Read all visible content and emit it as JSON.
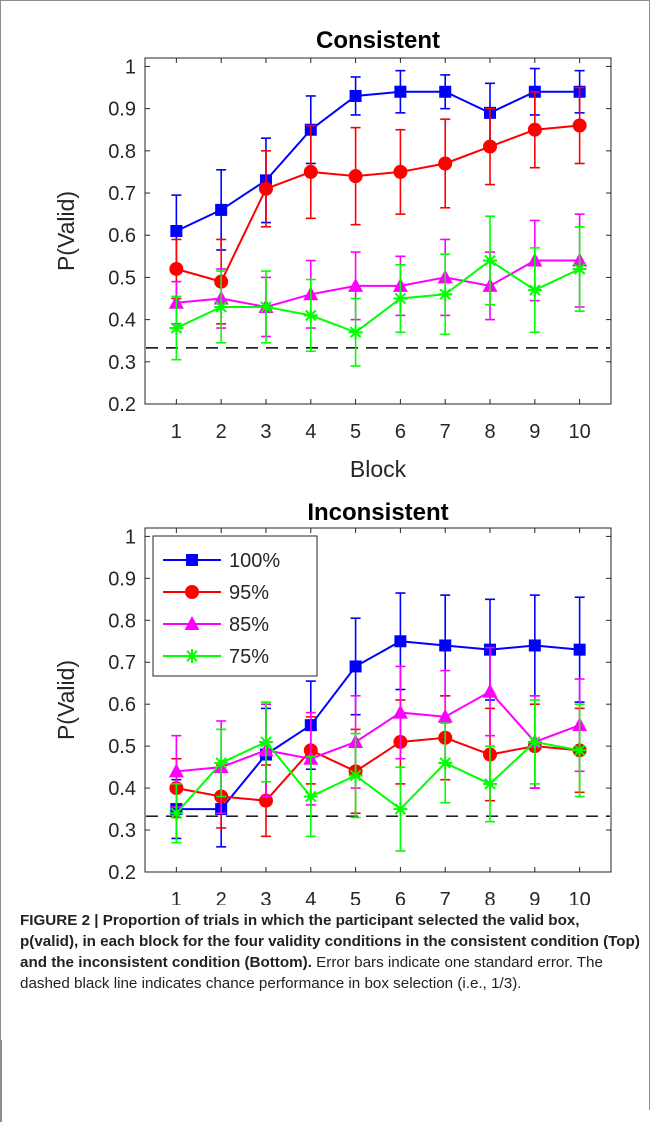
{
  "chart_data": [
    {
      "type": "line",
      "title": "Consistent",
      "xlabel": "Block",
      "ylabel": "P(Valid)",
      "xlim": [
        0.3,
        10.7
      ],
      "ylim": [
        0.2,
        1.02
      ],
      "x": [
        1,
        2,
        3,
        4,
        5,
        6,
        7,
        8,
        9,
        10
      ],
      "yticks": [
        "0.2",
        "0.3",
        "0.4",
        "0.5",
        "0.6",
        "0.7",
        "0.8",
        "0.9",
        "1"
      ],
      "chance_line": 0.333,
      "series": [
        {
          "name": "100%",
          "color": "#0000ff",
          "marker": "square",
          "values": [
            0.61,
            0.66,
            0.73,
            0.85,
            0.93,
            0.94,
            0.94,
            0.89,
            0.94,
            0.94
          ],
          "errors": [
            0.085,
            0.095,
            0.1,
            0.08,
            0.045,
            0.05,
            0.04,
            0.07,
            0.055,
            0.05
          ]
        },
        {
          "name": "95%",
          "color": "#ff0000",
          "marker": "circle",
          "values": [
            0.52,
            0.49,
            0.71,
            0.75,
            0.74,
            0.75,
            0.77,
            0.81,
            0.85,
            0.86
          ],
          "errors": [
            0.07,
            0.1,
            0.09,
            0.11,
            0.115,
            0.1,
            0.105,
            0.09,
            0.09,
            0.09
          ]
        },
        {
          "name": "85%",
          "color": "#ff00ff",
          "marker": "triangle",
          "values": [
            0.44,
            0.45,
            0.43,
            0.46,
            0.48,
            0.48,
            0.5,
            0.48,
            0.54,
            0.54
          ],
          "errors": [
            0.05,
            0.07,
            0.07,
            0.08,
            0.08,
            0.07,
            0.09,
            0.08,
            0.095,
            0.11
          ]
        },
        {
          "name": "75%",
          "color": "#00ff00",
          "marker": "star",
          "values": [
            0.38,
            0.43,
            0.43,
            0.41,
            0.37,
            0.45,
            0.46,
            0.54,
            0.47,
            0.52
          ],
          "errors": [
            0.075,
            0.085,
            0.085,
            0.085,
            0.08,
            0.08,
            0.095,
            0.105,
            0.1,
            0.1
          ]
        }
      ]
    },
    {
      "type": "line",
      "title": "Inconsistent",
      "xlabel": "Block",
      "ylabel": "P(Valid)",
      "xlim": [
        0.3,
        10.7
      ],
      "ylim": [
        0.2,
        1.02
      ],
      "x": [
        1,
        2,
        3,
        4,
        5,
        6,
        7,
        8,
        9,
        10
      ],
      "yticks": [
        "0.2",
        "0.3",
        "0.4",
        "0.5",
        "0.6",
        "0.7",
        "0.8",
        "0.9",
        "1"
      ],
      "chance_line": 0.333,
      "legend_position": "top-left",
      "series": [
        {
          "name": "100%",
          "color": "#0000ff",
          "marker": "square",
          "values": [
            0.35,
            0.35,
            0.48,
            0.55,
            0.69,
            0.75,
            0.74,
            0.73,
            0.74,
            0.73
          ],
          "errors": [
            0.07,
            0.09,
            0.11,
            0.105,
            0.115,
            0.115,
            0.12,
            0.12,
            0.12,
            0.125
          ]
        },
        {
          "name": "95%",
          "color": "#ff0000",
          "marker": "circle",
          "values": [
            0.4,
            0.38,
            0.37,
            0.49,
            0.44,
            0.51,
            0.52,
            0.48,
            0.5,
            0.49
          ],
          "errors": [
            0.07,
            0.075,
            0.085,
            0.08,
            0.1,
            0.1,
            0.1,
            0.11,
            0.1,
            0.1
          ]
        },
        {
          "name": "85%",
          "color": "#ff00ff",
          "marker": "triangle",
          "values": [
            0.44,
            0.45,
            0.49,
            0.47,
            0.51,
            0.58,
            0.57,
            0.63,
            0.51,
            0.55
          ],
          "errors": [
            0.085,
            0.11,
            0.11,
            0.11,
            0.11,
            0.11,
            0.11,
            0.105,
            0.11,
            0.11
          ]
        },
        {
          "name": "75%",
          "color": "#00ff00",
          "marker": "star",
          "values": [
            0.34,
            0.46,
            0.51,
            0.38,
            0.43,
            0.35,
            0.46,
            0.41,
            0.51,
            0.49
          ],
          "errors": [
            0.07,
            0.08,
            0.095,
            0.095,
            0.1,
            0.1,
            0.095,
            0.09,
            0.1,
            0.11
          ]
        }
      ]
    }
  ],
  "caption": {
    "label": "FIGURE 2 | Proportion of trials in which the participant selected the valid box, p(valid), in each block for the four validity conditions in the consistent condition (Top) and the inconsistent condition (Bottom).",
    "text": "Error bars indicate one standard error. The dashed black line indicates chance performance in box selection (i.e., 1/3)."
  }
}
